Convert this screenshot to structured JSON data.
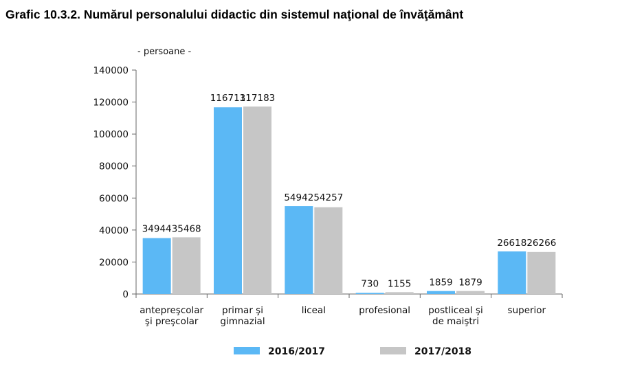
{
  "title": "Grafic 10.3.2. Numărul personalului didactic din sistemul naţional de învăţământ",
  "chart_data": {
    "type": "bar",
    "unit_label": "- persoane -",
    "categories": [
      [
        "antepreşcolar",
        "şi preşcolar"
      ],
      [
        "primar şi",
        "gimnazial"
      ],
      [
        "liceal"
      ],
      [
        "profesional"
      ],
      [
        "postliceal şi",
        "de maiştri"
      ],
      [
        "superior"
      ]
    ],
    "series": [
      {
        "name": "2016/2017",
        "color": "#5bb8f5",
        "values": [
          34944,
          116713,
          54942,
          730,
          1859,
          26618
        ]
      },
      {
        "name": "2017/2018",
        "color": "#c6c6c6",
        "values": [
          35468,
          117183,
          54257,
          1155,
          1879,
          26266
        ]
      }
    ],
    "ylim": [
      0,
      140000
    ],
    "yticks": [
      0,
      20000,
      40000,
      60000,
      80000,
      100000,
      120000,
      140000
    ],
    "legend_position": "bottom",
    "grid": false
  }
}
